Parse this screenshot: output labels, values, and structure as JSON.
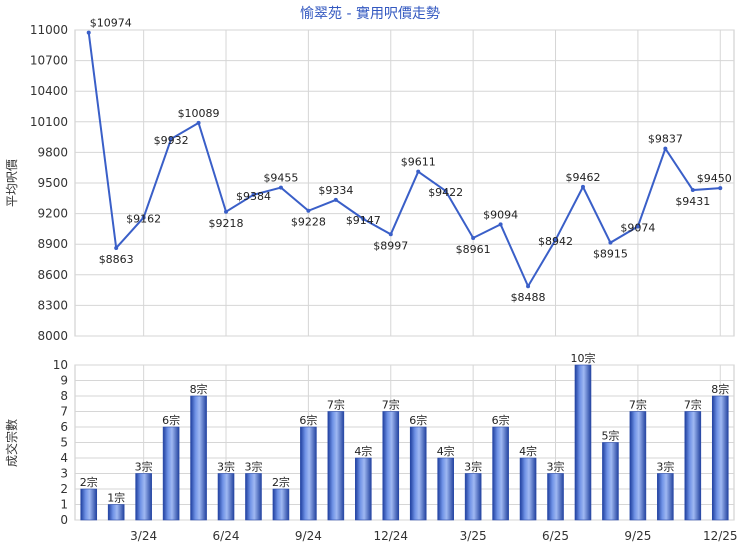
{
  "chart_data": [
    {
      "type": "line",
      "title": "愉翠苑 - 實用呎價走勢",
      "ylabel": "平均呎價",
      "ylim": [
        8000,
        11000
      ],
      "yticks": [
        8000,
        8300,
        8600,
        8900,
        9200,
        9500,
        9800,
        10100,
        10400,
        10700,
        11000
      ],
      "grid": true,
      "color": "#3a5fc8",
      "values": [
        10974,
        8863,
        9162,
        9932,
        10089,
        9218,
        9384,
        9455,
        9228,
        9334,
        9147,
        8997,
        9611,
        9422,
        8961,
        9094,
        8488,
        8942,
        9462,
        8915,
        9074,
        9837,
        9431,
        9450
      ],
      "labels": [
        "$10974",
        "$8863",
        "$9162",
        "$9932",
        "$10089",
        "$9218",
        "$9384",
        "$9455",
        "$9228",
        "$9334",
        "$9147",
        "$8997",
        "$9611",
        "$9422",
        "$8961",
        "$9094",
        "$8488",
        "$8942",
        "$9462",
        "$8915",
        "$9074",
        "$9837",
        "$9431",
        "$9450"
      ]
    },
    {
      "type": "bar",
      "ylabel": "成交宗數",
      "ylim": [
        0,
        10
      ],
      "yticks": [
        0,
        1,
        2,
        3,
        4,
        5,
        6,
        7,
        8,
        9,
        10
      ],
      "grid": true,
      "color": "#3a5fc8",
      "values": [
        2,
        1,
        3,
        6,
        8,
        3,
        3,
        2,
        6,
        7,
        4,
        7,
        6,
        4,
        3,
        6,
        4,
        3,
        10,
        5,
        7,
        3,
        7,
        8
      ],
      "labels": [
        "2宗",
        "1宗",
        "3宗",
        "6宗",
        "8宗",
        "3宗",
        "3宗",
        "2宗",
        "6宗",
        "7宗",
        "4宗",
        "7宗",
        "6宗",
        "4宗",
        "3宗",
        "6宗",
        "4宗",
        "3宗",
        "10宗",
        "5宗",
        "7宗",
        "3宗",
        "7宗",
        "8宗"
      ],
      "xticks": [
        {
          "index": 2,
          "label": "3/24"
        },
        {
          "index": 5,
          "label": "6/24"
        },
        {
          "index": 8,
          "label": "9/24"
        },
        {
          "index": 11,
          "label": "12/24"
        },
        {
          "index": 14,
          "label": "3/25"
        },
        {
          "index": 17,
          "label": "6/25"
        },
        {
          "index": 20,
          "label": "9/25"
        },
        {
          "index": 23,
          "label": "12/25"
        }
      ]
    }
  ]
}
